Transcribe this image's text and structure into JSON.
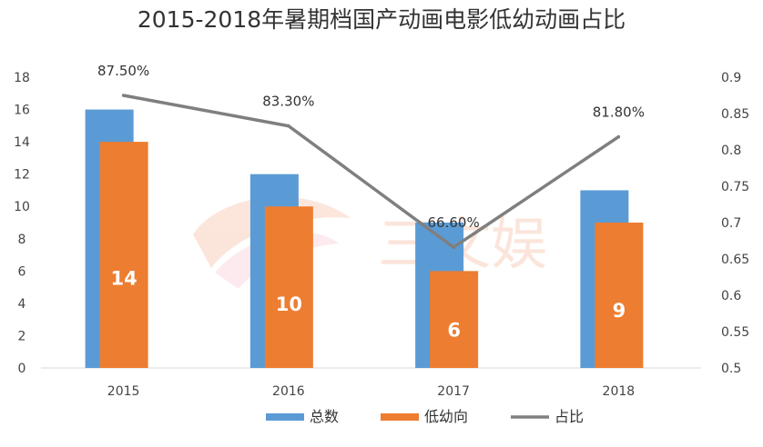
{
  "chart_data": {
    "type": "bar",
    "title": "2015-2018年暑期档国产动画电影低幼动画占比",
    "categories": [
      "2015",
      "2016",
      "2017",
      "2018"
    ],
    "series": [
      {
        "name": "总数",
        "kind": "bar",
        "axis": "left",
        "color": "#5B9BD5",
        "values": [
          16,
          12,
          9,
          11
        ]
      },
      {
        "name": "低幼向",
        "kind": "bar",
        "axis": "left",
        "color": "#ED7D31",
        "values": [
          14,
          10,
          6,
          9
        ]
      },
      {
        "name": "占比",
        "kind": "line",
        "axis": "right",
        "color": "#7F7F7F",
        "values": [
          0.875,
          0.833,
          0.666,
          0.818
        ]
      }
    ],
    "bar_labels": [
      "14",
      "10",
      "6",
      "9"
    ],
    "line_labels": [
      "87.50%",
      "83.30%",
      "66.60%",
      "81.80%"
    ],
    "ylim_left": [
      0,
      18
    ],
    "yticks_left": [
      "0",
      "2",
      "4",
      "6",
      "8",
      "10",
      "12",
      "14",
      "16",
      "18"
    ],
    "ylim_right": [
      0.5,
      0.9
    ],
    "yticks_right": [
      "0.5",
      "0.55",
      "0.6",
      "0.65",
      "0.7",
      "0.75",
      "0.8",
      "0.85",
      "0.9"
    ],
    "legend_position": "bottom",
    "grid": false,
    "watermark": "三文娱"
  }
}
